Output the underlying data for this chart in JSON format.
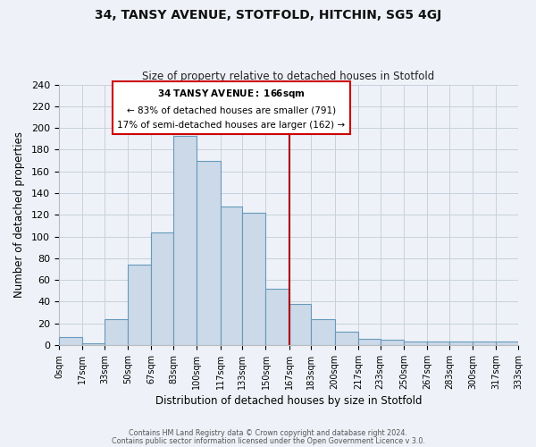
{
  "title": "34, TANSY AVENUE, STOTFOLD, HITCHIN, SG5 4GJ",
  "subtitle": "Size of property relative to detached houses in Stotfold",
  "xlabel": "Distribution of detached houses by size in Stotfold",
  "ylabel": "Number of detached properties",
  "bin_edges": [
    0,
    17,
    33,
    50,
    67,
    83,
    100,
    117,
    133,
    150,
    167,
    183,
    200,
    217,
    233,
    250,
    267,
    283,
    300,
    317,
    333
  ],
  "counts": [
    7,
    2,
    24,
    74,
    104,
    193,
    170,
    128,
    122,
    52,
    38,
    24,
    12,
    6,
    5,
    3,
    3,
    3,
    3,
    3
  ],
  "bar_color": "#ccd9e8",
  "bar_edge_color": "#6699bb",
  "vline_x": 167,
  "vline_color": "#aa0000",
  "annotation_title": "34 TANSY AVENUE: 166sqm",
  "annotation_line1": "← 83% of detached houses are smaller (791)",
  "annotation_line2": "17% of semi-detached houses are larger (162) →",
  "annotation_box_facecolor": "#ffffff",
  "annotation_box_edgecolor": "#cc0000",
  "tick_labels": [
    "0sqm",
    "17sqm",
    "33sqm",
    "50sqm",
    "67sqm",
    "83sqm",
    "100sqm",
    "117sqm",
    "133sqm",
    "150sqm",
    "167sqm",
    "183sqm",
    "200sqm",
    "217sqm",
    "233sqm",
    "250sqm",
    "267sqm",
    "283sqm",
    "300sqm",
    "317sqm",
    "333sqm"
  ],
  "ylim": [
    0,
    240
  ],
  "yticks": [
    0,
    20,
    40,
    60,
    80,
    100,
    120,
    140,
    160,
    180,
    200,
    220,
    240
  ],
  "footer_line1": "Contains HM Land Registry data © Crown copyright and database right 2024.",
  "footer_line2": "Contains public sector information licensed under the Open Government Licence v 3.0.",
  "background_color": "#eef2f8",
  "grid_color": "#c8d0dc"
}
